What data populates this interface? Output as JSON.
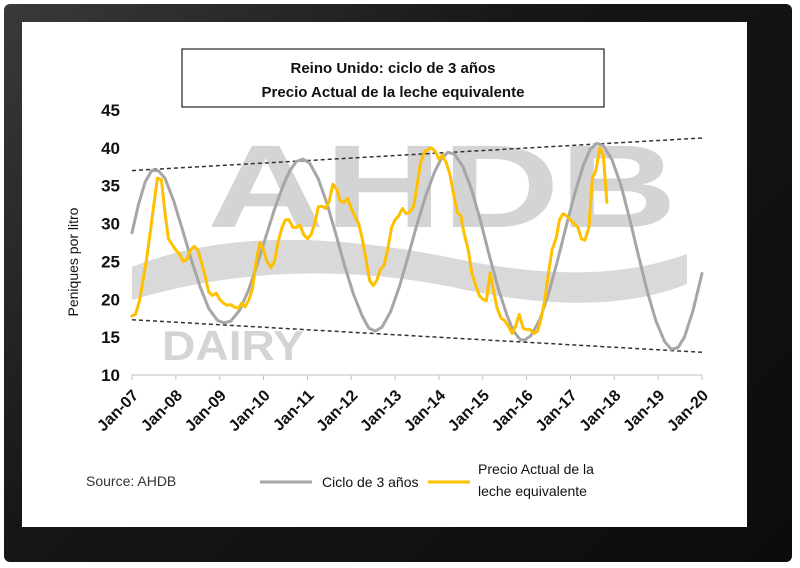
{
  "colors": {
    "cycle": "#a6a6a6",
    "price": "#ffc000",
    "trend": "#333333",
    "watermark": "#d4d4d4"
  },
  "watermark": {
    "line1": "AHDB",
    "line2": "DAIRY"
  },
  "source": "Source: AHDB",
  "legend": [
    {
      "text": [
        "Ciclo de 3 años"
      ],
      "color": "#a6a6a6"
    },
    {
      "text": [
        "Precio Actual de la",
        "leche equivalente"
      ],
      "color": "#ffc000"
    }
  ],
  "chart_data": {
    "type": "line",
    "title": [
      "Reino Unido:  ciclo de 3 años",
      "Precio Actual de la leche equivalente"
    ],
    "xlabel": "",
    "ylabel": "Peniques por litro",
    "ylim": [
      10,
      45
    ],
    "yticks": [
      10,
      15,
      20,
      25,
      30,
      35,
      40,
      45
    ],
    "xlim": [
      2007,
      2020
    ],
    "xticks": [
      {
        "x": 2007,
        "label": "Jan-07"
      },
      {
        "x": 2008,
        "label": "Jan-08"
      },
      {
        "x": 2009,
        "label": "Jan-09"
      },
      {
        "x": 2010,
        "label": "Jan-10"
      },
      {
        "x": 2011,
        "label": "Jan-11"
      },
      {
        "x": 2012,
        "label": "Jan-12"
      },
      {
        "x": 2013,
        "label": "Jan-13"
      },
      {
        "x": 2014,
        "label": "Jan-14"
      },
      {
        "x": 2015,
        "label": "Jan-15"
      },
      {
        "x": 2016,
        "label": "Jan-16"
      },
      {
        "x": 2017,
        "label": "Jan-17"
      },
      {
        "x": 2018,
        "label": "Jan-18"
      },
      {
        "x": 2019,
        "label": "Jan-19"
      },
      {
        "x": 2020,
        "label": "Jan-20"
      }
    ],
    "grid": false,
    "legend_position": "bottom",
    "trend_lines": [
      {
        "x": [
          2007,
          2020
        ],
        "y": [
          37,
          41.3
        ]
      },
      {
        "x": [
          2007,
          2020
        ],
        "y": [
          17.3,
          13
        ]
      }
    ],
    "series": [
      {
        "name": "Ciclo de 3 años",
        "points": [
          [
            2007.0,
            28.8
          ],
          [
            2007.15,
            32.6
          ],
          [
            2007.3,
            35.5
          ],
          [
            2007.45,
            37.0
          ],
          [
            2007.6,
            37.0
          ],
          [
            2007.75,
            36.0
          ],
          [
            2007.95,
            33.0
          ],
          [
            2008.15,
            29.2
          ],
          [
            2008.35,
            25.3
          ],
          [
            2008.55,
            21.7
          ],
          [
            2008.75,
            18.8
          ],
          [
            2008.95,
            17.2
          ],
          [
            2009.1,
            16.9
          ],
          [
            2009.25,
            17.1
          ],
          [
            2009.45,
            18.5
          ],
          [
            2009.65,
            21.1
          ],
          [
            2009.85,
            24.5
          ],
          [
            2010.05,
            28.2
          ],
          [
            2010.25,
            31.9
          ],
          [
            2010.45,
            35.1
          ],
          [
            2010.6,
            37.0
          ],
          [
            2010.75,
            38.2
          ],
          [
            2010.9,
            38.5
          ],
          [
            2011.05,
            38.0
          ],
          [
            2011.25,
            35.9
          ],
          [
            2011.45,
            32.6
          ],
          [
            2011.65,
            28.6
          ],
          [
            2011.85,
            24.4
          ],
          [
            2012.05,
            20.7
          ],
          [
            2012.25,
            17.8
          ],
          [
            2012.4,
            16.2
          ],
          [
            2012.55,
            15.8
          ],
          [
            2012.7,
            16.3
          ],
          [
            2012.9,
            18.4
          ],
          [
            2013.1,
            21.7
          ],
          [
            2013.3,
            25.7
          ],
          [
            2013.5,
            29.9
          ],
          [
            2013.7,
            33.7
          ],
          [
            2013.9,
            36.8
          ],
          [
            2014.05,
            38.5
          ],
          [
            2014.2,
            39.4
          ],
          [
            2014.35,
            39.2
          ],
          [
            2014.55,
            37.5
          ],
          [
            2014.75,
            34.4
          ],
          [
            2014.95,
            30.3
          ],
          [
            2015.15,
            25.8
          ],
          [
            2015.35,
            21.5
          ],
          [
            2015.55,
            17.9
          ],
          [
            2015.7,
            15.8
          ],
          [
            2015.85,
            14.7
          ],
          [
            2015.95,
            14.6
          ],
          [
            2016.1,
            15.2
          ],
          [
            2016.3,
            17.3
          ],
          [
            2016.5,
            20.7
          ],
          [
            2016.7,
            25.0
          ],
          [
            2016.9,
            29.6
          ],
          [
            2017.1,
            34.0
          ],
          [
            2017.3,
            37.8
          ],
          [
            2017.45,
            39.8
          ],
          [
            2017.6,
            40.6
          ],
          [
            2017.75,
            40.3
          ],
          [
            2017.95,
            38.4
          ],
          [
            2018.15,
            35.1
          ],
          [
            2018.35,
            30.6
          ],
          [
            2018.55,
            25.8
          ],
          [
            2018.75,
            21.1
          ],
          [
            2018.95,
            17.1
          ],
          [
            2019.15,
            14.4
          ],
          [
            2019.3,
            13.4
          ],
          [
            2019.45,
            13.6
          ],
          [
            2019.6,
            15.0
          ],
          [
            2019.8,
            18.6
          ],
          [
            2020.0,
            23.4
          ]
        ]
      },
      {
        "name": "Precio Actual de la leche equivalente",
        "points": [
          [
            2007.0,
            17.8
          ],
          [
            2007.08,
            18.0
          ],
          [
            2007.17,
            19.8
          ],
          [
            2007.25,
            22.5
          ],
          [
            2007.33,
            25.2
          ],
          [
            2007.42,
            29.0
          ],
          [
            2007.5,
            32.5
          ],
          [
            2007.58,
            36.0
          ],
          [
            2007.67,
            35.8
          ],
          [
            2007.75,
            31.5
          ],
          [
            2007.83,
            28.0
          ],
          [
            2007.92,
            27.2
          ],
          [
            2008.0,
            26.5
          ],
          [
            2008.08,
            26.0
          ],
          [
            2008.17,
            25.0
          ],
          [
            2008.25,
            25.2
          ],
          [
            2008.33,
            26.5
          ],
          [
            2008.42,
            27.0
          ],
          [
            2008.5,
            26.5
          ],
          [
            2008.58,
            25.0
          ],
          [
            2008.67,
            23.0
          ],
          [
            2008.75,
            21.0
          ],
          [
            2008.83,
            20.5
          ],
          [
            2008.92,
            20.8
          ],
          [
            2009.0,
            20.0
          ],
          [
            2009.08,
            19.5
          ],
          [
            2009.17,
            19.2
          ],
          [
            2009.25,
            19.3
          ],
          [
            2009.33,
            19.0
          ],
          [
            2009.42,
            18.8
          ],
          [
            2009.5,
            19.5
          ],
          [
            2009.58,
            19.0
          ],
          [
            2009.67,
            20.0
          ],
          [
            2009.75,
            21.5
          ],
          [
            2009.83,
            25.0
          ],
          [
            2009.92,
            27.5
          ],
          [
            2010.0,
            26.5
          ],
          [
            2010.08,
            25.0
          ],
          [
            2010.17,
            24.2
          ],
          [
            2010.25,
            25.0
          ],
          [
            2010.33,
            27.5
          ],
          [
            2010.42,
            29.5
          ],
          [
            2010.5,
            30.5
          ],
          [
            2010.58,
            30.5
          ],
          [
            2010.67,
            29.5
          ],
          [
            2010.75,
            29.5
          ],
          [
            2010.83,
            29.8
          ],
          [
            2010.92,
            28.5
          ],
          [
            2011.0,
            28.0
          ],
          [
            2011.08,
            28.5
          ],
          [
            2011.17,
            30.0
          ],
          [
            2011.25,
            32.2
          ],
          [
            2011.33,
            32.3
          ],
          [
            2011.42,
            32.0
          ],
          [
            2011.5,
            33.0
          ],
          [
            2011.58,
            35.2
          ],
          [
            2011.67,
            34.5
          ],
          [
            2011.75,
            33.0
          ],
          [
            2011.83,
            32.8
          ],
          [
            2011.92,
            33.3
          ],
          [
            2012.0,
            32.0
          ],
          [
            2012.08,
            31.0
          ],
          [
            2012.17,
            30.0
          ],
          [
            2012.25,
            28.0
          ],
          [
            2012.33,
            25.5
          ],
          [
            2012.42,
            22.5
          ],
          [
            2012.5,
            21.8
          ],
          [
            2012.58,
            22.5
          ],
          [
            2012.67,
            24.0
          ],
          [
            2012.75,
            24.5
          ],
          [
            2012.83,
            26.5
          ],
          [
            2012.92,
            29.5
          ],
          [
            2013.0,
            30.5
          ],
          [
            2013.08,
            31.0
          ],
          [
            2013.17,
            32.0
          ],
          [
            2013.25,
            31.3
          ],
          [
            2013.33,
            31.5
          ],
          [
            2013.42,
            32.2
          ],
          [
            2013.5,
            35.0
          ],
          [
            2013.58,
            38.0
          ],
          [
            2013.67,
            39.5
          ],
          [
            2013.75,
            39.8
          ],
          [
            2013.83,
            40.0
          ],
          [
            2013.92,
            39.5
          ],
          [
            2014.0,
            38.5
          ],
          [
            2014.08,
            39.0
          ],
          [
            2014.17,
            38.0
          ],
          [
            2014.25,
            36.5
          ],
          [
            2014.33,
            34.0
          ],
          [
            2014.42,
            31.5
          ],
          [
            2014.5,
            31.0
          ],
          [
            2014.58,
            28.5
          ],
          [
            2014.67,
            26.5
          ],
          [
            2014.75,
            23.5
          ],
          [
            2014.83,
            22.0
          ],
          [
            2014.92,
            20.5
          ],
          [
            2015.0,
            20.0
          ],
          [
            2015.08,
            19.8
          ],
          [
            2015.17,
            23.5
          ],
          [
            2015.25,
            21.0
          ],
          [
            2015.33,
            18.8
          ],
          [
            2015.42,
            17.5
          ],
          [
            2015.5,
            17.2
          ],
          [
            2015.58,
            16.5
          ],
          [
            2015.67,
            15.5
          ],
          [
            2015.75,
            16.5
          ],
          [
            2015.83,
            18.0
          ],
          [
            2015.92,
            16.2
          ],
          [
            2016.0,
            16.0
          ],
          [
            2016.08,
            16.0
          ],
          [
            2016.17,
            15.5
          ],
          [
            2016.25,
            15.8
          ],
          [
            2016.33,
            17.5
          ],
          [
            2016.42,
            20.0
          ],
          [
            2016.5,
            23.5
          ],
          [
            2016.58,
            26.5
          ],
          [
            2016.67,
            28.0
          ],
          [
            2016.75,
            30.5
          ],
          [
            2016.83,
            31.3
          ],
          [
            2016.92,
            31.0
          ],
          [
            2017.0,
            30.5
          ],
          [
            2017.08,
            30.0
          ],
          [
            2017.17,
            29.5
          ],
          [
            2017.25,
            28.0
          ],
          [
            2017.33,
            27.8
          ],
          [
            2017.42,
            29.5
          ],
          [
            2017.5,
            36.0
          ],
          [
            2017.58,
            37.0
          ],
          [
            2017.67,
            40.0
          ],
          [
            2017.75,
            39.0
          ],
          [
            2017.83,
            32.8
          ]
        ]
      }
    ]
  }
}
